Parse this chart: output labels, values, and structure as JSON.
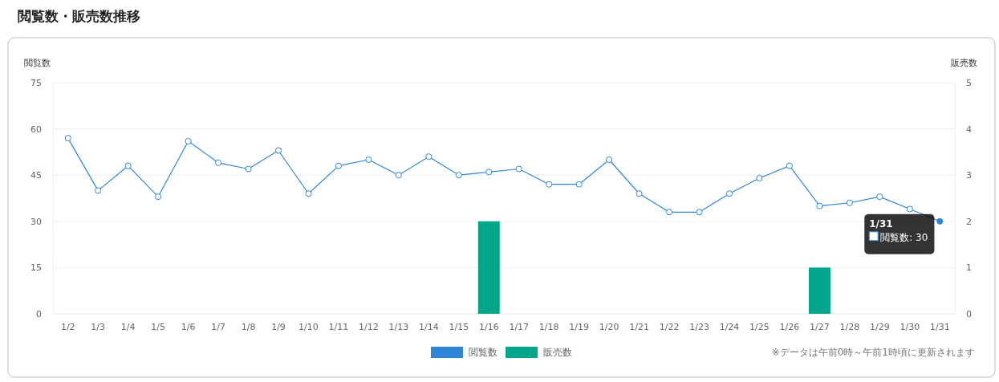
{
  "chart_data": {
    "type": "line",
    "title": "閲覧数・販売数推移",
    "ylabel": "閲覧数",
    "y2label": "販売数",
    "categories": [
      "1/2",
      "1/3",
      "1/4",
      "1/5",
      "1/6",
      "1/7",
      "1/8",
      "1/9",
      "1/10",
      "1/11",
      "1/12",
      "1/13",
      "1/14",
      "1/15",
      "1/16",
      "1/17",
      "1/18",
      "1/19",
      "1/20",
      "1/21",
      "1/22",
      "1/23",
      "1/24",
      "1/25",
      "1/26",
      "1/27",
      "1/28",
      "1/29",
      "1/30",
      "1/31"
    ],
    "series": [
      {
        "name": "閲覧数",
        "color": "#2f86d8",
        "values": [
          57,
          40,
          48,
          38,
          56,
          49,
          47,
          53,
          39,
          48,
          50,
          45,
          51,
          45,
          46,
          47,
          42,
          42,
          50,
          39,
          33,
          33,
          39,
          44,
          48,
          35,
          36,
          38,
          34,
          30
        ]
      },
      {
        "name": "販売数",
        "type": "bar",
        "axis": "y2",
        "color": "#00a58a",
        "values": [
          0,
          0,
          0,
          0,
          0,
          0,
          0,
          0,
          0,
          0,
          0,
          0,
          0,
          0,
          2,
          0,
          0,
          0,
          0,
          0,
          0,
          0,
          0,
          0,
          0,
          1,
          0,
          0,
          0,
          0
        ]
      }
    ],
    "ylim": [
      0,
      75
    ],
    "yticks": [
      0,
      15,
      30,
      45,
      60,
      75
    ],
    "y2lim": [
      0,
      5
    ],
    "y2ticks": [
      0,
      1,
      2,
      3,
      4,
      5
    ],
    "grid": "y",
    "legend": "bottom",
    "marker": "circle",
    "line_style": "solid",
    "annotations": [
      "1/31",
      "閲覧数: 30",
      "※データは午前0時～午前1時頃に更新されます"
    ]
  }
}
